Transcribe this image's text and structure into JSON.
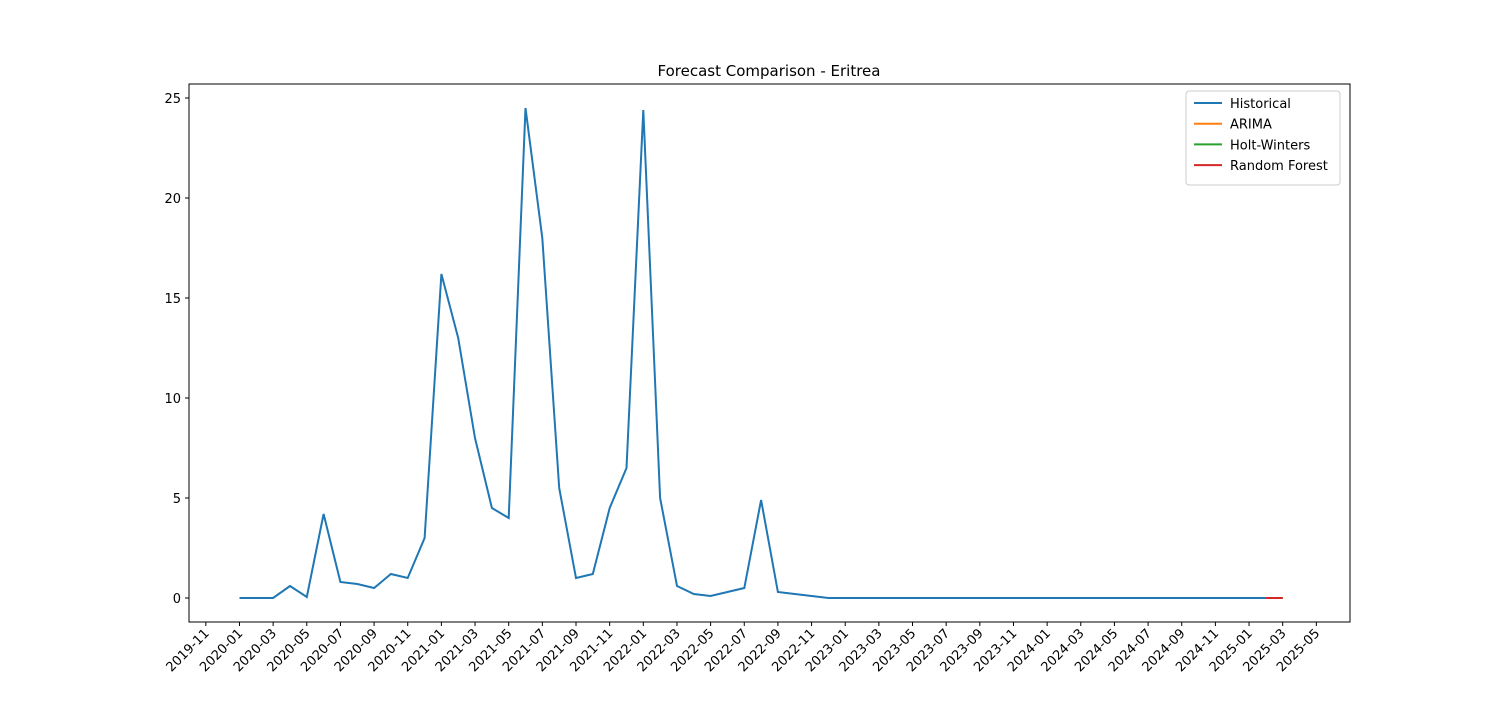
{
  "chart_data": {
    "type": "line",
    "title": "Forecast Comparison - Eritrea",
    "series": [
      {
        "name": "Historical",
        "color": "#1f77b4",
        "x": [
          "2020-01",
          "2020-02",
          "2020-03",
          "2020-04",
          "2020-05",
          "2020-06",
          "2020-07",
          "2020-08",
          "2020-09",
          "2020-10",
          "2020-11",
          "2020-12",
          "2021-01",
          "2021-02",
          "2021-03",
          "2021-04",
          "2021-05",
          "2021-06",
          "2021-07",
          "2021-08",
          "2021-09",
          "2021-10",
          "2021-11",
          "2021-12",
          "2022-01",
          "2022-02",
          "2022-03",
          "2022-04",
          "2022-05",
          "2022-06",
          "2022-07",
          "2022-08",
          "2022-09",
          "2022-10",
          "2022-11",
          "2022-12",
          "2023-01",
          "2023-02",
          "2023-03",
          "2023-04",
          "2023-05",
          "2023-06",
          "2023-07",
          "2023-08",
          "2023-09",
          "2023-10",
          "2023-11",
          "2023-12",
          "2024-01",
          "2024-02",
          "2024-03",
          "2024-04",
          "2024-05",
          "2024-06",
          "2024-07",
          "2024-08",
          "2024-09",
          "2024-10",
          "2024-11",
          "2024-12",
          "2025-01",
          "2025-02"
        ],
        "values": [
          0,
          0,
          0,
          0.6,
          0.05,
          4.2,
          0.8,
          0.7,
          0.5,
          1.2,
          1,
          3,
          16.2,
          13,
          8,
          4.5,
          4,
          24.5,
          18,
          5.5,
          1,
          1.2,
          4.5,
          6.5,
          24.4,
          5,
          0.6,
          0.2,
          0.1,
          0.3,
          0.5,
          4.9,
          0.3,
          0.2,
          0.1,
          0,
          0,
          0,
          0,
          0,
          0,
          0,
          0,
          0,
          0,
          0,
          0,
          0,
          0,
          0,
          0,
          0,
          0,
          0,
          0,
          0,
          0,
          0,
          0,
          0,
          0,
          0
        ]
      },
      {
        "name": "ARIMA",
        "color": "#ff7f0e",
        "x": [
          "2025-02",
          "2025-03"
        ],
        "values": [
          0,
          0
        ]
      },
      {
        "name": "Holt-Winters",
        "color": "#2ca02c",
        "x": [
          "2025-02",
          "2025-03"
        ],
        "values": [
          0,
          0
        ]
      },
      {
        "name": "Random Forest",
        "color": "#d62728",
        "x": [
          "2025-02",
          "2025-03"
        ],
        "values": [
          0,
          0
        ]
      }
    ],
    "xlim": [
      "2019-10",
      "2025-07"
    ],
    "xticks": [
      "2019-11",
      "2020-01",
      "2020-03",
      "2020-05",
      "2020-07",
      "2020-09",
      "2020-11",
      "2021-01",
      "2021-03",
      "2021-05",
      "2021-07",
      "2021-09",
      "2021-11",
      "2022-01",
      "2022-03",
      "2022-05",
      "2022-07",
      "2022-09",
      "2022-11",
      "2023-01",
      "2023-03",
      "2023-05",
      "2023-07",
      "2023-09",
      "2023-11",
      "2024-01",
      "2024-03",
      "2024-05",
      "2024-07",
      "2024-09",
      "2024-11",
      "2025-01",
      "2025-03",
      "2025-05"
    ],
    "ylim": [
      -1.2,
      25.7
    ],
    "yticks": [
      0,
      5,
      10,
      15,
      20,
      25
    ],
    "legend": "upper right"
  }
}
